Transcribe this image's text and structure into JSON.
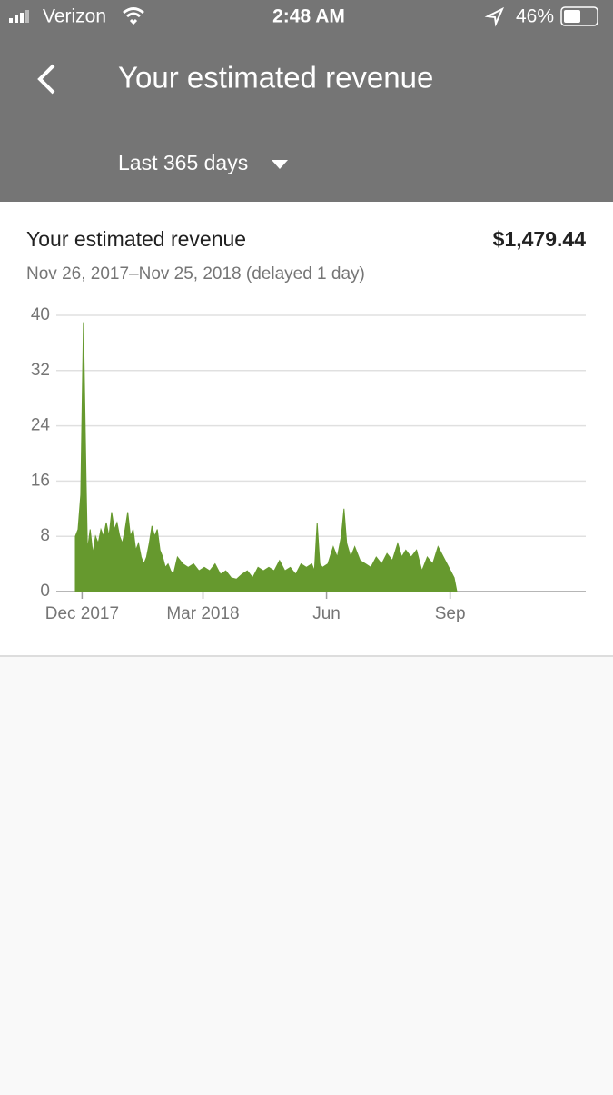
{
  "status_bar": {
    "carrier": "Verizon",
    "time": "2:48 AM",
    "battery": "46%"
  },
  "header": {
    "title": "Your estimated revenue",
    "period": "Last 365 days"
  },
  "card": {
    "title": "Your estimated revenue",
    "total": "$1,479.44",
    "date_range": "Nov 26, 2017–Nov 25, 2018 (delayed 1 day)"
  },
  "chart_data": {
    "type": "area",
    "color": "#66992e",
    "grid": true,
    "xlim": [
      0,
      380
    ],
    "xticks": [
      {
        "value": 5,
        "label": "Dec 2017"
      },
      {
        "value": 95,
        "label": "Mar 2018"
      },
      {
        "value": 187,
        "label": "Jun"
      },
      {
        "value": 279,
        "label": "Sep"
      }
    ],
    "ylim": [
      0,
      40
    ],
    "yticks": [
      0,
      8,
      16,
      24,
      32,
      40
    ],
    "x": [
      0,
      2,
      4,
      6,
      8,
      9,
      11,
      13,
      15,
      17,
      19,
      21,
      23,
      25,
      27,
      29,
      31,
      33,
      35,
      37,
      39,
      41,
      43,
      45,
      47,
      49,
      51,
      53,
      55,
      57,
      59,
      61,
      63,
      65,
      67,
      69,
      71,
      73,
      76,
      80,
      84,
      88,
      92,
      96,
      100,
      104,
      108,
      112,
      116,
      120,
      124,
      128,
      132,
      136,
      140,
      144,
      148,
      152,
      156,
      160,
      164,
      168,
      172,
      176,
      178,
      180,
      182,
      184,
      188,
      192,
      195,
      198,
      200,
      202,
      205,
      208,
      212,
      216,
      220,
      224,
      228,
      232,
      236,
      240,
      243,
      246,
      250,
      254,
      258,
      262,
      266,
      270,
      274,
      278,
      282,
      284
    ],
    "values": [
      8,
      9,
      14,
      39,
      16,
      6,
      9,
      5.5,
      8,
      7,
      9,
      8,
      10,
      8,
      11.5,
      9,
      10,
      8,
      7,
      9,
      11.5,
      8,
      9,
      6,
      7,
      5,
      4,
      5,
      7,
      9.5,
      8,
      9,
      6,
      5,
      3.5,
      4,
      3,
      2.5,
      5,
      4,
      3.5,
      4,
      3,
      3.5,
      3,
      4,
      2.5,
      3,
      2,
      1.8,
      2.5,
      3,
      2,
      3.5,
      3,
      3.5,
      3,
      4.5,
      3,
      3.5,
      2.5,
      4,
      3.5,
      4,
      3,
      10,
      4,
      3.5,
      4,
      6.5,
      5,
      8,
      12,
      7,
      5,
      6.5,
      4.5,
      4,
      3.5,
      5,
      4,
      5.5,
      4.5,
      7,
      5,
      6,
      5,
      6,
      3,
      5,
      4,
      6.5,
      5,
      3.5,
      2,
      0
    ]
  }
}
